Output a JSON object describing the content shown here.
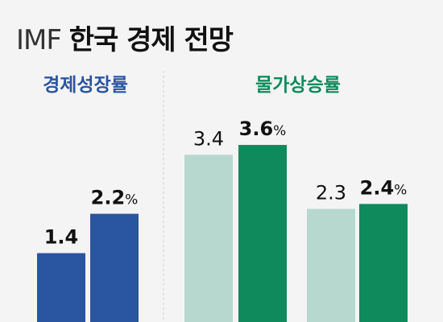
{
  "title": {
    "prefix": "IMF",
    "main": "한국 경제 전망"
  },
  "colors": {
    "growth_prev": "#2a55a0",
    "growth_curr": "#2a55a0",
    "price_prev": "#b7d8cf",
    "price_curr": "#0f8a5c",
    "growth_label": "#2a55a0",
    "price_label": "#0f8a5c"
  },
  "chart_data": [
    {
      "type": "bar",
      "title": "경제성장률",
      "values": [
        1.4,
        2.2
      ],
      "value_labels": [
        "1.4",
        "2.2"
      ],
      "unit": "%"
    },
    {
      "type": "bar",
      "title": "물가상승률",
      "groups": [
        {
          "values": [
            3.4,
            3.6
          ],
          "value_labels": [
            "3.4",
            "3.6"
          ]
        },
        {
          "values": [
            2.3,
            2.4
          ],
          "value_labels": [
            "2.3",
            "2.4"
          ]
        }
      ],
      "unit": "%"
    }
  ]
}
